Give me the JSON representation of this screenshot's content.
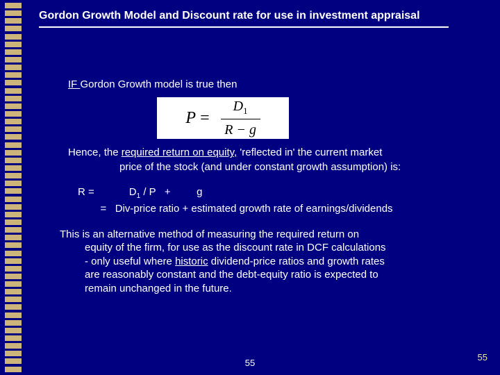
{
  "title": "Gordon Growth Model and Discount rate for use in investment appraisal",
  "line1_prefix": "IF ",
  "line1_rest": "Gordon Growth model is true then",
  "formula": {
    "lhs": "P",
    "eq": "=",
    "num_var": "D",
    "num_sub": "1",
    "den": "R − g"
  },
  "para2a": "Hence, the ",
  "para2b": "required return on equity,",
  "para2c": " 'reflected in' the current market",
  "para2d": "price of the stock (and under constant growth assumption) is:",
  "eq1a": "R =            D",
  "eq1sub": "1",
  "eq1b": " / P   +         g",
  "eq2": "   =   Div-price ratio + estimated growth rate of earnings/dividends",
  "para3a": "This is an alternative method of measuring the required return on",
  "para3b": "equity of the firm, for use as the discount rate in DCF calculations",
  "para3c": "- only useful where ",
  "para3c_u": "historic",
  "para3c2": " dividend-price ratios and growth rates",
  "para3d": "are reasonably constant and the debt-equity ratio is expected to",
  "para3e": "remain unchanged in the future.",
  "page_num": "55"
}
